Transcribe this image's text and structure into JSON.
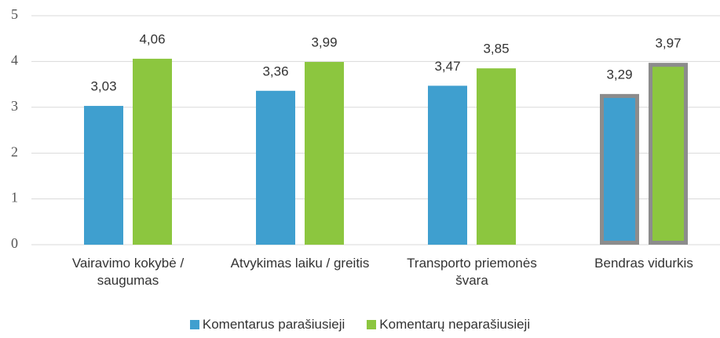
{
  "chart_data": {
    "type": "bar",
    "categories": [
      "Vairavimo kokybė / saugumas",
      "Atvykimas laiku / greitis",
      "Transporto priemonės švara",
      "Bendras vidurkis"
    ],
    "series": [
      {
        "name": "Komentarus parašiusieji",
        "color": "#3f9fcf",
        "values": [
          3.03,
          3.36,
          3.47,
          3.29
        ],
        "value_labels": [
          "3,03",
          "3,36",
          "3,47",
          "3,29"
        ]
      },
      {
        "name": "Komentarų neparašiusieji",
        "color": "#8cc63f",
        "values": [
          4.06,
          3.99,
          3.85,
          3.97
        ],
        "value_labels": [
          "4,06",
          "3,99",
          "3,85",
          "3,97"
        ]
      }
    ],
    "ylim": [
      0,
      5
    ],
    "yticks": [
      0,
      1,
      2,
      3,
      4,
      5
    ],
    "grid": true,
    "highlight": "Bendras vidurkis",
    "highlight_color": "#8c8c8c",
    "legend": "bottom"
  }
}
